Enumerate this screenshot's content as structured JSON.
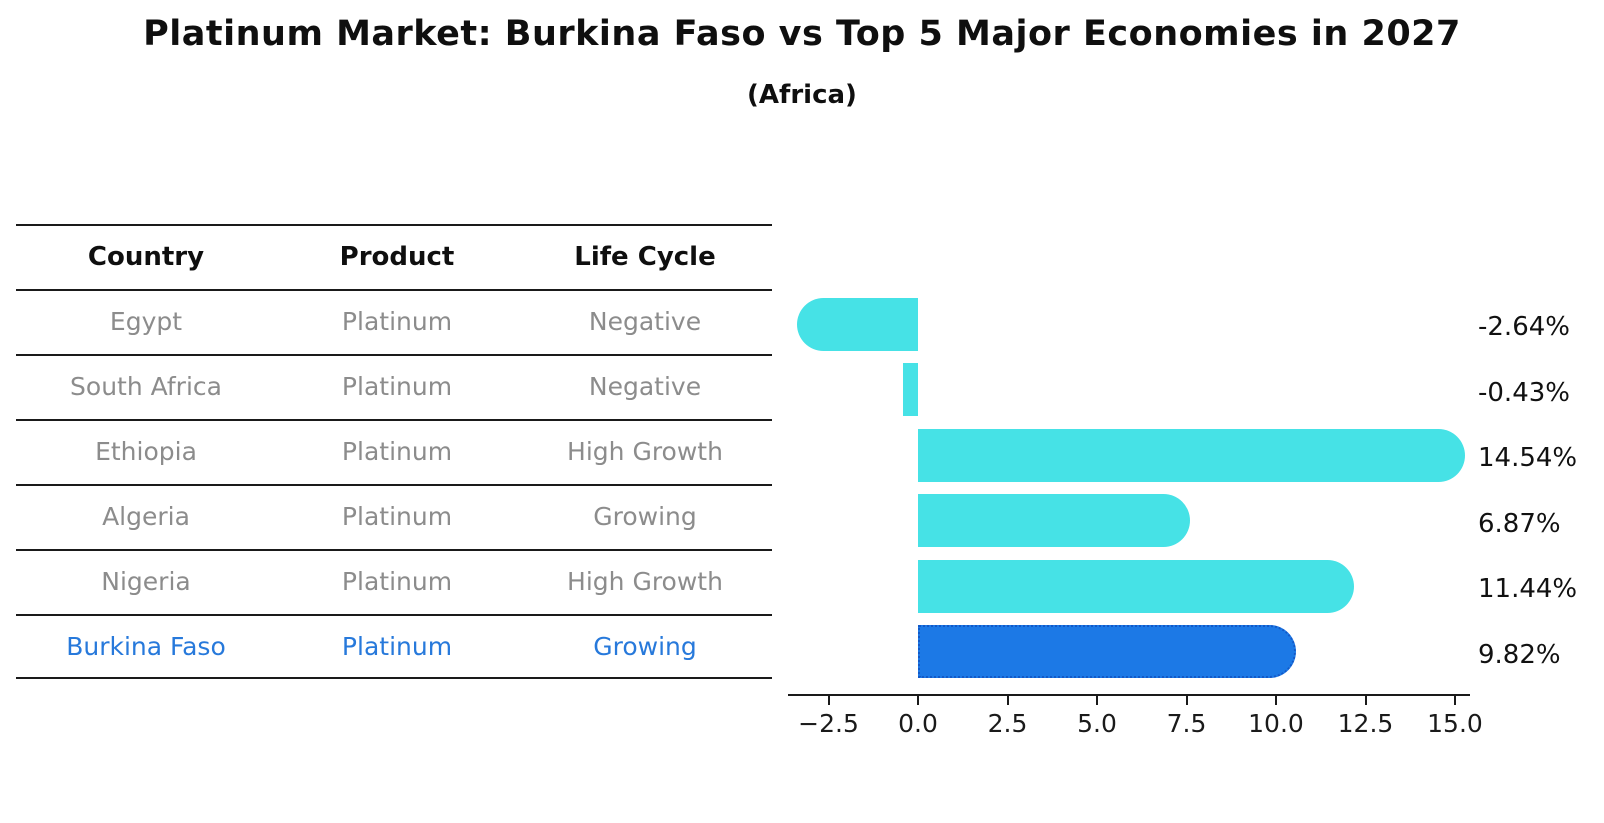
{
  "title": "Platinum Market: Burkina Faso vs Top 5 Major Economies in 2027",
  "subtitle": "(Africa)",
  "table": {
    "headers": [
      "Country",
      "Product",
      "Life Cycle"
    ],
    "rows": [
      {
        "country": "Egypt",
        "product": "Platinum",
        "life_cycle": "Negative",
        "highlight": false
      },
      {
        "country": "South Africa",
        "product": "Platinum",
        "life_cycle": "Negative",
        "highlight": false
      },
      {
        "country": "Ethiopia",
        "product": "Platinum",
        "life_cycle": "High Growth",
        "highlight": false
      },
      {
        "country": "Algeria",
        "product": "Platinum",
        "life_cycle": "Growing",
        "highlight": false
      },
      {
        "country": "Nigeria",
        "product": "Platinum",
        "life_cycle": "High Growth",
        "highlight": false
      },
      {
        "country": "Burkina Faso",
        "product": "Platinum",
        "life_cycle": "Growing",
        "highlight": true
      }
    ]
  },
  "chart_data": {
    "type": "bar",
    "orientation": "horizontal",
    "title": "Platinum Market: Burkina Faso vs Top 5 Major Economies in 2027",
    "subtitle": "(Africa)",
    "categories": [
      "Egypt",
      "South Africa",
      "Ethiopia",
      "Algeria",
      "Nigeria",
      "Burkina Faso"
    ],
    "values": [
      -2.64,
      -0.43,
      14.54,
      6.87,
      11.44,
      9.82
    ],
    "value_labels": [
      "-2.64%",
      "-0.43%",
      "14.54%",
      "6.87%",
      "11.44%",
      "9.82%"
    ],
    "x_tick_labels": [
      "−2.5",
      "0.0",
      "2.5",
      "5.0",
      "7.5",
      "10.0",
      "12.5",
      "15.0"
    ],
    "x_tick_values": [
      -2.5,
      0,
      2.5,
      5,
      7.5,
      10,
      12.5,
      15
    ],
    "xlim": [
      -3.6,
      15.4
    ],
    "grid": false,
    "legend": "none",
    "highlight_index": 5
  },
  "colors": {
    "bar": "#46E2E6",
    "highlight_bar": "#1C79E6",
    "highlight_border": "#1259C8",
    "highlight_text": "#2779DB",
    "row_text": "#8c8c8c",
    "axis": "#1a1a1a",
    "label_text": "#111111"
  }
}
